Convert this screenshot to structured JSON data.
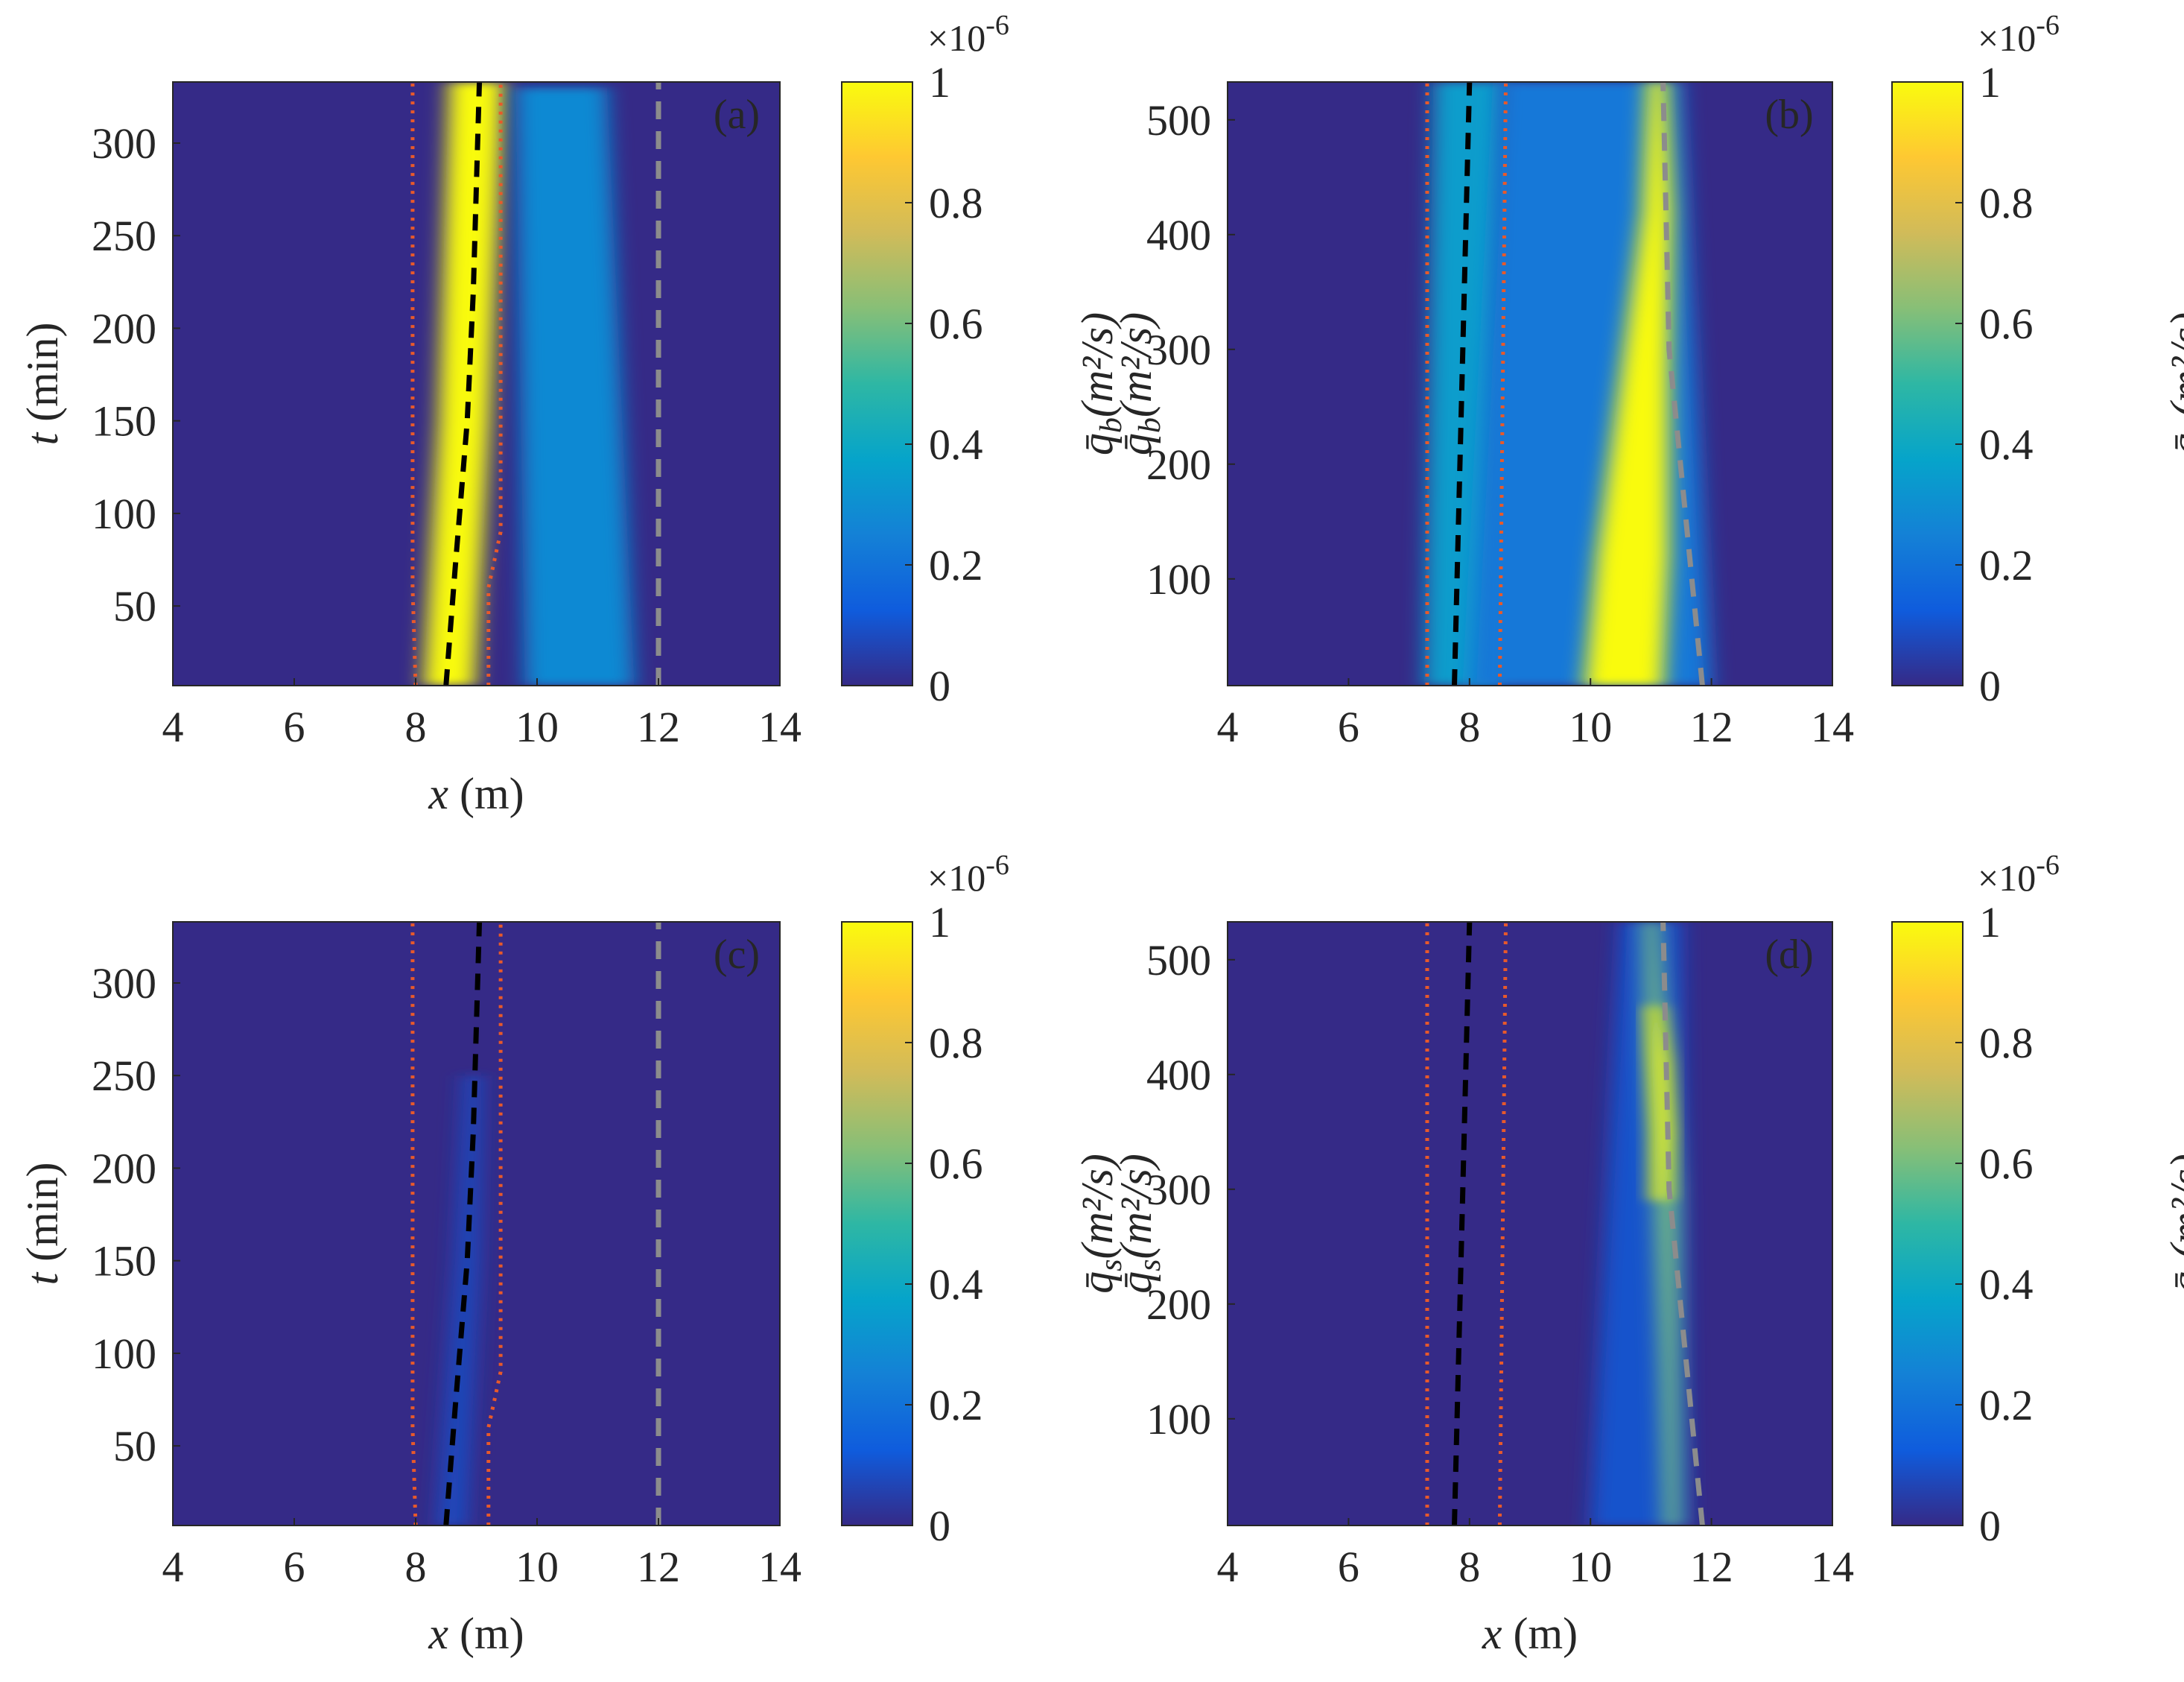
{
  "colors": {
    "background_field": "#352a87",
    "colormap": [
      "#352a87",
      "#0f5cdd",
      "#1481d6",
      "#06a4ca",
      "#2eb7a4",
      "#87bf77",
      "#d1bb59",
      "#fec832",
      "#f9fb0e"
    ],
    "mean_line": "#000000",
    "bound_lines": "#e8592a",
    "shore_line": "#8c8c8c"
  },
  "chart_data": [
    {
      "type": "heatmap",
      "panel_label": "(a)",
      "xlabel": "x (m)",
      "ylabel": "t (min)",
      "xlim": [
        4,
        14
      ],
      "ylim": [
        7,
        333
      ],
      "xticks": [
        "4",
        "6",
        "8",
        "10",
        "12",
        "14"
      ],
      "yticks": [
        "50",
        "100",
        "150",
        "200",
        "250",
        "300"
      ],
      "colorbar": {
        "label": "q̄b(m²/s)",
        "exponent": "×10",
        "exponent_power": "-6",
        "ticks": [
          "0",
          "0.2",
          "0.4",
          "0.6",
          "0.8",
          "1"
        ],
        "clim": [
          0,
          1
        ]
      },
      "blobs": [
        {
          "t": [
            7,
            150,
            333
          ],
          "x_center": [
            8.55,
            8.8,
            9.0
          ],
          "width": [
            0.85,
            0.85,
            0.9
          ],
          "value": 1.0
        },
        {
          "t": [
            7,
            330
          ],
          "x_center": [
            10.7,
            10.4
          ],
          "width": [
            1.8,
            1.5
          ],
          "value": 0.28
        }
      ],
      "lines": [
        {
          "name": "mean",
          "t": [
            7,
            70,
            150,
            220,
            333
          ],
          "x": [
            8.5,
            8.65,
            8.85,
            8.95,
            9.05
          ]
        },
        {
          "name": "lower",
          "t": [
            7,
            60,
            90,
            333
          ],
          "x": [
            8.0,
            7.95,
            7.95,
            7.95
          ]
        },
        {
          "name": "upper",
          "t": [
            7,
            60,
            90,
            333
          ],
          "x": [
            9.2,
            9.2,
            9.4,
            9.4
          ]
        },
        {
          "name": "shore",
          "t": [
            7,
            333
          ],
          "x": [
            12.0,
            12.0
          ]
        }
      ]
    },
    {
      "type": "heatmap",
      "panel_label": "(b)",
      "xlabel": "",
      "ylabel": "q̄b(m²/s)",
      "xlim": [
        4,
        14
      ],
      "ylim": [
        7,
        533
      ],
      "xticks": [
        "4",
        "6",
        "8",
        "10",
        "12",
        "14"
      ],
      "yticks": [
        "100",
        "200",
        "300",
        "400",
        "500"
      ],
      "colorbar": {
        "label": "q̄b(m²/s)",
        "exponent": "×10",
        "exponent_power": "-6",
        "ticks": [
          "0",
          "0.2",
          "0.4",
          "0.6",
          "0.8",
          "1"
        ],
        "clim": [
          0,
          1
        ]
      },
      "blobs": [
        {
          "t": [
            7,
            533
          ],
          "x_center": [
            7.85,
            8.0
          ],
          "width": [
            1.2,
            1.2
          ],
          "value": 0.35
        },
        {
          "t": [
            7,
            533
          ],
          "x_center": [
            10.0,
            10.0
          ],
          "width": [
            4.0,
            3.0
          ],
          "value": 0.22
        },
        {
          "t": [
            7,
            120,
            280,
            420,
            533
          ],
          "x_center": [
            10.55,
            10.7,
            10.9,
            11.1,
            11.1
          ],
          "width": [
            1.3,
            1.2,
            0.8,
            0.5,
            0.3
          ],
          "value": 1.0
        }
      ],
      "lines": [
        {
          "name": "mean",
          "t": [
            7,
            533
          ],
          "x": [
            7.75,
            8.0
          ]
        },
        {
          "name": "lower",
          "t": [
            7,
            533
          ],
          "x": [
            7.3,
            7.3
          ]
        },
        {
          "name": "upper",
          "t": [
            7,
            533
          ],
          "x": [
            8.5,
            8.6
          ]
        },
        {
          "name": "shore",
          "t": [
            7,
            300,
            533
          ],
          "x": [
            11.85,
            11.3,
            11.2
          ]
        }
      ]
    },
    {
      "type": "heatmap",
      "panel_label": "(c)",
      "xlabel": "x (m)",
      "ylabel": "t (min)",
      "xlim": [
        4,
        14
      ],
      "ylim": [
        7,
        333
      ],
      "xticks": [
        "4",
        "6",
        "8",
        "10",
        "12",
        "14"
      ],
      "yticks": [
        "50",
        "100",
        "150",
        "200",
        "250",
        "300"
      ],
      "colorbar": {
        "label": "q̄s(m²/s)",
        "exponent": "×10",
        "exponent_power": "-6",
        "ticks": [
          "0",
          "0.2",
          "0.4",
          "0.6",
          "0.8",
          "1"
        ],
        "clim": [
          0,
          1
        ]
      },
      "blobs": [
        {
          "t": [
            7,
            150,
            250
          ],
          "x_center": [
            8.6,
            8.85,
            8.95
          ],
          "width": [
            0.5,
            0.4,
            0.3
          ],
          "value": 0.08
        }
      ],
      "lines": [
        {
          "name": "mean",
          "t": [
            7,
            70,
            150,
            220,
            333
          ],
          "x": [
            8.5,
            8.65,
            8.85,
            8.95,
            9.05
          ]
        },
        {
          "name": "lower",
          "t": [
            7,
            60,
            90,
            333
          ],
          "x": [
            8.0,
            7.95,
            7.95,
            7.95
          ]
        },
        {
          "name": "upper",
          "t": [
            7,
            60,
            90,
            333
          ],
          "x": [
            9.2,
            9.2,
            9.4,
            9.4
          ]
        },
        {
          "name": "shore",
          "t": [
            7,
            333
          ],
          "x": [
            12.0,
            12.0
          ]
        }
      ]
    },
    {
      "type": "heatmap",
      "panel_label": "(d)",
      "xlabel": "x (m)",
      "ylabel": "q̄s(m²/s)",
      "xlim": [
        4,
        14
      ],
      "ylim": [
        7,
        533
      ],
      "xticks": [
        "4",
        "6",
        "8",
        "10",
        "12",
        "14"
      ],
      "yticks": [
        "100",
        "200",
        "300",
        "400",
        "500"
      ],
      "colorbar": {
        "label": "q̄s(m²/s)",
        "exponent": "×10",
        "exponent_power": "-6",
        "ticks": [
          "0",
          "0.2",
          "0.4",
          "0.6",
          "0.8",
          "1"
        ],
        "clim": [
          0,
          1
        ]
      },
      "blobs": [
        {
          "t": [
            7,
            533
          ],
          "x_center": [
            10.8,
            11.0
          ],
          "width": [
            1.6,
            1.0
          ],
          "value": 0.1
        },
        {
          "t": [
            7,
            150,
            300,
            420,
            533
          ],
          "x_center": [
            11.35,
            11.3,
            11.25,
            11.1,
            11.0
          ],
          "width": [
            0.25,
            0.3,
            0.4,
            0.35,
            0.25
          ],
          "value": 0.6
        },
        {
          "t": [
            290,
            350,
            410,
            460
          ],
          "x_center": [
            11.15,
            11.2,
            11.15,
            11.05
          ],
          "width": [
            0.25,
            0.3,
            0.3,
            0.2
          ],
          "value": 1.0
        }
      ],
      "lines": [
        {
          "name": "mean",
          "t": [
            7,
            533
          ],
          "x": [
            7.75,
            8.0
          ]
        },
        {
          "name": "lower",
          "t": [
            7,
            533
          ],
          "x": [
            7.3,
            7.3
          ]
        },
        {
          "name": "upper",
          "t": [
            7,
            533
          ],
          "x": [
            8.5,
            8.6
          ]
        },
        {
          "name": "shore",
          "t": [
            7,
            300,
            533
          ],
          "x": [
            11.85,
            11.3,
            11.2
          ]
        }
      ]
    }
  ]
}
